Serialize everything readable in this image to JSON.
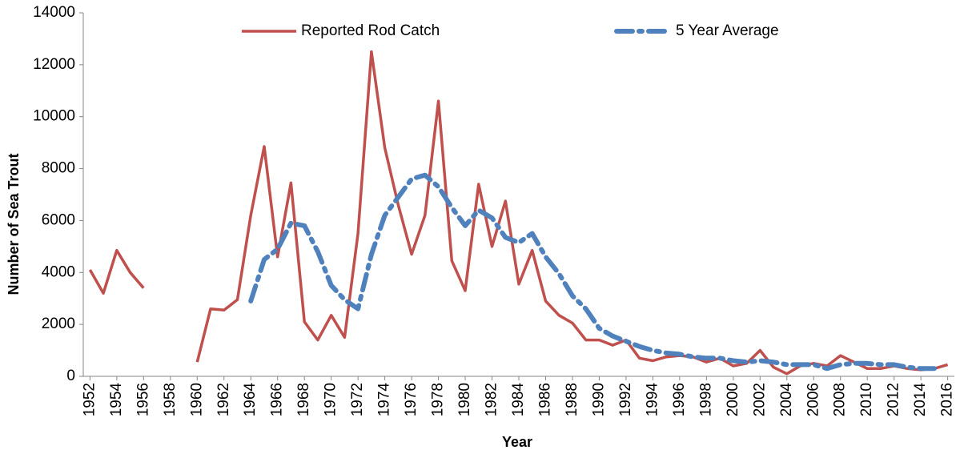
{
  "chart_data": {
    "type": "line",
    "x_label": "Year",
    "y_label": "Number of Sea Trout",
    "x": [
      1952,
      1953,
      1954,
      1955,
      1956,
      1957,
      1958,
      1959,
      1960,
      1961,
      1962,
      1963,
      1964,
      1965,
      1966,
      1967,
      1968,
      1969,
      1970,
      1971,
      1972,
      1973,
      1974,
      1975,
      1976,
      1977,
      1978,
      1979,
      1980,
      1981,
      1982,
      1983,
      1984,
      1985,
      1986,
      1987,
      1988,
      1989,
      1990,
      1991,
      1992,
      1993,
      1994,
      1995,
      1996,
      1997,
      1998,
      1999,
      2000,
      2001,
      2002,
      2003,
      2004,
      2005,
      2006,
      2007,
      2008,
      2009,
      2010,
      2011,
      2012,
      2013,
      2014,
      2015,
      2016
    ],
    "series": [
      {
        "name": "Reported Rod Catch",
        "color": "#c0504d",
        "dashed": false,
        "values": [
          4100,
          3200,
          4850,
          4000,
          3400,
          null,
          null,
          null,
          550,
          2600,
          2550,
          2950,
          6200,
          8850,
          4600,
          7450,
          2100,
          1400,
          2350,
          1500,
          5500,
          12500,
          8800,
          6600,
          4700,
          6200,
          10600,
          4450,
          3300,
          7400,
          5000,
          6750,
          3550,
          4850,
          2900,
          2350,
          2050,
          1400,
          1400,
          1200,
          1400,
          700,
          600,
          750,
          800,
          750,
          550,
          700,
          400,
          500,
          1000,
          350,
          100,
          400,
          500,
          400,
          800,
          550,
          300,
          300,
          400,
          300,
          250,
          300,
          450
        ]
      },
      {
        "name": "5 Year Average",
        "color": "#4f81bd",
        "dashed": true,
        "values": [
          null,
          null,
          null,
          null,
          null,
          null,
          null,
          null,
          null,
          null,
          null,
          null,
          2900,
          4500,
          4900,
          5900,
          5800,
          4800,
          3500,
          2950,
          2600,
          4700,
          6200,
          6900,
          7600,
          7750,
          7300,
          6500,
          5800,
          6400,
          6100,
          5350,
          5150,
          5500,
          4600,
          3950,
          3100,
          2600,
          1850,
          1550,
          1350,
          1150,
          1000,
          900,
          850,
          750,
          700,
          700,
          600,
          550,
          600,
          550,
          450,
          450,
          450,
          300,
          450,
          500,
          500,
          450,
          450,
          350,
          300,
          300,
          null
        ]
      }
    ],
    "xlim": [
      1951.5,
      2016.5
    ],
    "xticks": [
      1952,
      1954,
      1956,
      1958,
      1960,
      1962,
      1964,
      1966,
      1968,
      1970,
      1972,
      1974,
      1976,
      1978,
      1980,
      1982,
      1984,
      1986,
      1988,
      1990,
      1992,
      1994,
      1996,
      1998,
      2000,
      2002,
      2004,
      2006,
      2008,
      2010,
      2012,
      2014,
      2016
    ],
    "ylim": [
      0,
      14000
    ],
    "yticks": [
      0,
      2000,
      4000,
      6000,
      8000,
      10000,
      12000,
      14000
    ],
    "grid": false,
    "legend": "top"
  }
}
